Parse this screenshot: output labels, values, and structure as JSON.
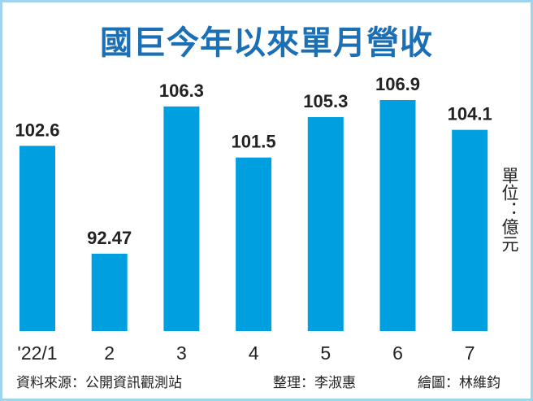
{
  "chart_data": {
    "type": "bar",
    "title": "國巨今年以來單月營收",
    "categories": [
      "'22/1",
      "2",
      "3",
      "4",
      "5",
      "6",
      "7"
    ],
    "values": [
      102.6,
      92.47,
      106.3,
      101.5,
      105.3,
      106.9,
      104.1
    ],
    "labels": [
      "102.6",
      "92.47",
      "106.3",
      "101.5",
      "105.3",
      "106.9",
      "104.1"
    ],
    "unit": "單位：億元",
    "xlabel": "",
    "ylabel": "",
    "ylim": [
      85.2,
      106.9
    ],
    "grid": false,
    "bar_color": "#009fe0",
    "title_color": "#1a6fb5"
  },
  "footer": {
    "source": "資料來源：公開資訊觀測站",
    "editor": "整理：李淑惠",
    "artist": "繪圖：林維鈞"
  }
}
